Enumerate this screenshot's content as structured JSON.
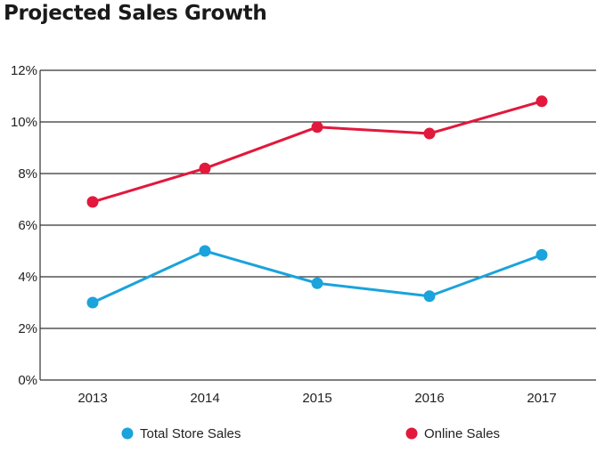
{
  "chart_data": {
    "type": "line",
    "title": "Projected Sales Growth",
    "xlabel": "",
    "ylabel": "",
    "categories": [
      "2013",
      "2014",
      "2015",
      "2016",
      "2017"
    ],
    "ylim": [
      0,
      12
    ],
    "yticks": [
      0,
      2,
      4,
      6,
      8,
      10,
      12
    ],
    "ytick_labels": [
      "0%",
      "2%",
      "4%",
      "6%",
      "8%",
      "10%",
      "12%"
    ],
    "grid": true,
    "legend_position": "bottom",
    "series": [
      {
        "name": "Total Store Sales",
        "color": "#1aa3dc",
        "values": [
          3.0,
          5.0,
          3.75,
          3.25,
          4.85
        ]
      },
      {
        "name": "Online Sales",
        "color": "#e2183c",
        "values": [
          6.9,
          8.2,
          9.8,
          9.55,
          10.8
        ]
      }
    ]
  }
}
